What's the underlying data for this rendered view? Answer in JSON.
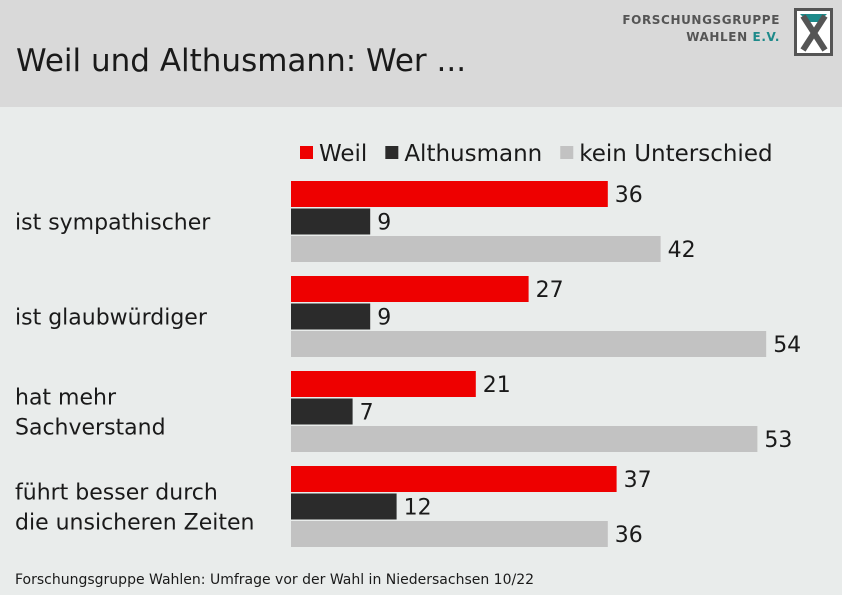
{
  "header": {
    "title": "Weil und Althusmann: Wer ...",
    "logo_line1": "FORSCHUNGSGRUPPE",
    "logo_line2": "WAHLEN",
    "logo_line2_suffix": "E.V."
  },
  "footer": {
    "source": "Forschungsgruppe Wahlen: Umfrage vor der Wahl in Niedersachsen 10/22"
  },
  "colors": {
    "weil": "#ee0000",
    "althusmann": "#2b2b2b",
    "kein_unterschied": "#c2c2c2",
    "logo_accent": "#1d8a8a"
  },
  "chart_data": {
    "type": "bar",
    "orientation": "horizontal",
    "categories": [
      [
        "ist sympathischer"
      ],
      [
        "ist glaubwürdiger"
      ],
      [
        "hat mehr",
        "Sachverstand"
      ],
      [
        "führt besser durch",
        "die unsicheren Zeiten"
      ]
    ],
    "series": [
      {
        "name": "Weil",
        "color": "#ee0000",
        "values": [
          36,
          27,
          21,
          37
        ]
      },
      {
        "name": "Althusmann",
        "color": "#2b2b2b",
        "values": [
          9,
          9,
          7,
          12
        ]
      },
      {
        "name": "kein Unterschied",
        "color": "#c2c2c2",
        "values": [
          42,
          54,
          53,
          36
        ]
      }
    ],
    "xlim": [
      0,
      60
    ],
    "value_labels": true,
    "grid": false,
    "legend_position": "top"
  }
}
